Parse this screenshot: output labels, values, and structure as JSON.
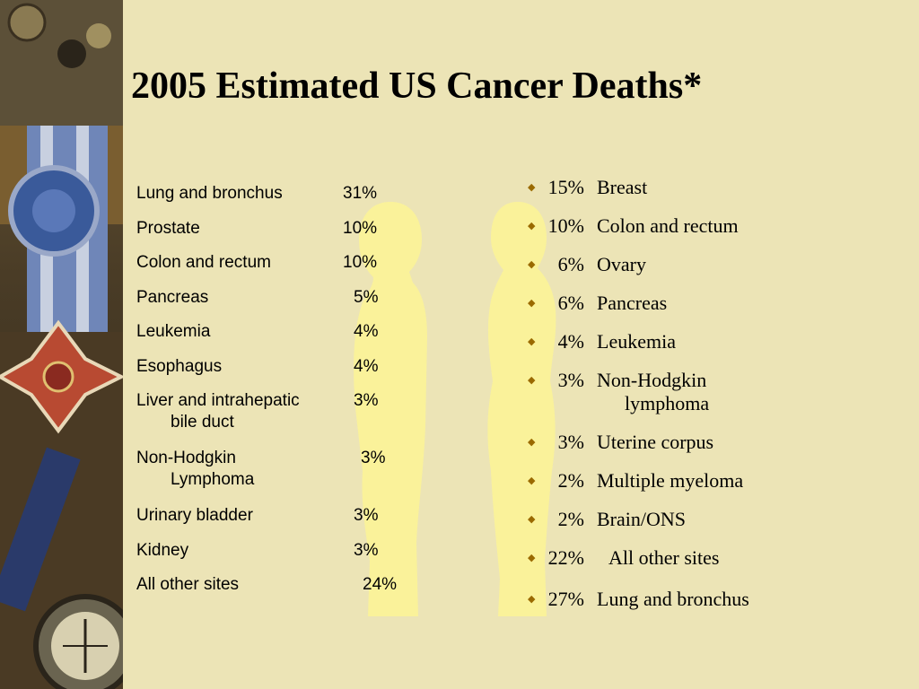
{
  "title": "2005 Estimated US Cancer Deaths*",
  "male_list": [
    {
      "site": "Lung and bronchus",
      "pct": "31%"
    },
    {
      "site": "Prostate",
      "pct": "10%"
    },
    {
      "site": "Colon and rectum",
      "pct": "10%"
    },
    {
      "site": "Pancreas",
      "pct": "5%"
    },
    {
      "site": "Leukemia",
      "pct": "4%"
    },
    {
      "site": "Esophagus",
      "pct": "4%"
    },
    {
      "site": "Liver and intrahepatic",
      "site_cont": "bile duct",
      "pct": "3%"
    },
    {
      "site": "Non-Hodgkin",
      "site_cont": "Lymphoma",
      "pct": "3%"
    },
    {
      "site": "Urinary bladder",
      "pct": "3%"
    },
    {
      "site": "Kidney",
      "pct": "3%"
    },
    {
      "site": "All other sites",
      "pct": "24%"
    }
  ],
  "female_list": [
    {
      "pct": "15%",
      "site": "Breast"
    },
    {
      "pct": "10%",
      "site": "Colon and rectum"
    },
    {
      "pct": "6%",
      "site": "Ovary"
    },
    {
      "pct": "6%",
      "site": "Pancreas"
    },
    {
      "pct": "4%",
      "site": "Leukemia"
    },
    {
      "pct": "3%",
      "site": "Non-Hodgkin",
      "site_cont": "lymphoma"
    },
    {
      "pct": "3%",
      "site": "Uterine corpus"
    },
    {
      "pct": "2%",
      "site": "Multiple myeloma"
    },
    {
      "pct": "2%",
      "site": "Brain/ONS"
    },
    {
      "pct": "22%",
      "site": "All other sites"
    },
    {
      "pct": "27%",
      "site": "Lung and bronchus"
    }
  ],
  "bullet_glyph": "◆",
  "colors": {
    "background": "#ece4b6",
    "silhouette": "#faf29a",
    "bullet": "#9a6a00"
  }
}
